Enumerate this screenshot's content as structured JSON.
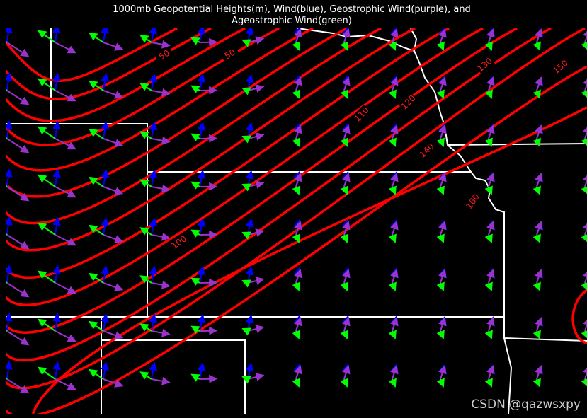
{
  "header": {
    "title_lines": [
      "1000mb Geopotential Heights(m), Wind(blue), Geostrophic Wind(purple), and",
      "Ageostrophic Wind(green)"
    ]
  },
  "map": {
    "contour_labels": [
      "50",
      "50",
      "100",
      "110",
      "120",
      "130",
      "140",
      "150",
      "160"
    ]
  },
  "watermark": "CSDN @qazwsxpy"
}
